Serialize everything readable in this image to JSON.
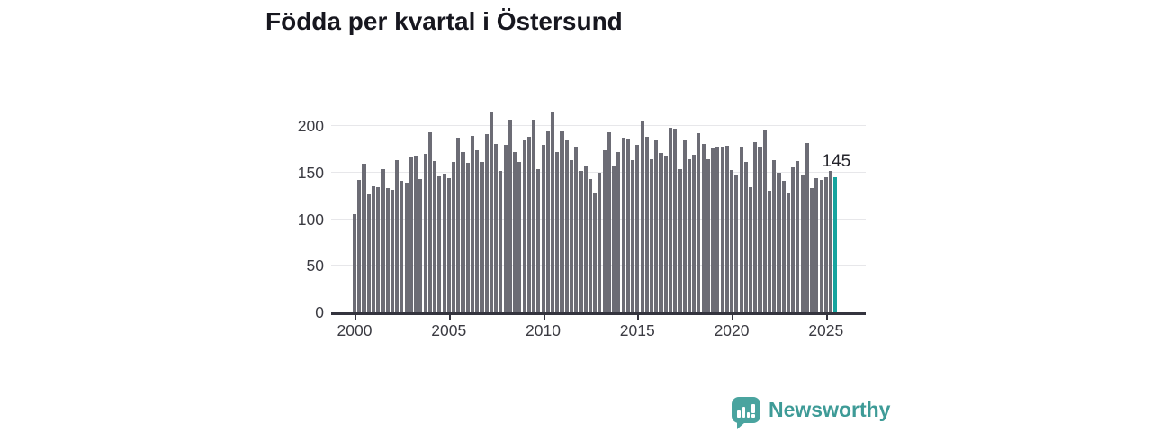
{
  "title": "Födda per kvartal i Östersund",
  "annotation": {
    "last_value_label": "145"
  },
  "branding": {
    "name": "Newsworthy",
    "icon": "newsworthy-speech-bubble-bars-icon"
  },
  "colors": {
    "bar": "#6c6c75",
    "highlight": "#16a49e",
    "grid": "#e7e7ea",
    "axis": "#34343e",
    "title": "#17171f",
    "tick_text": "#3b3b42",
    "brand_teal": "#3e9b97"
  },
  "chart_data": {
    "type": "bar",
    "title": "Födda per kvartal i Östersund",
    "xlabel": "",
    "ylabel": "",
    "ylim": [
      0,
      217
    ],
    "grid": true,
    "legend": false,
    "y_ticks": [
      0,
      50,
      100,
      150,
      200
    ],
    "x_ticks": [
      "2000",
      "2005",
      "2010",
      "2015",
      "2020",
      "2025"
    ],
    "highlight_index": 102,
    "highlight_label": "145",
    "categories": [
      "2000 Q1",
      "2000 Q2",
      "2000 Q3",
      "2000 Q4",
      "2001 Q1",
      "2001 Q2",
      "2001 Q3",
      "2001 Q4",
      "2002 Q1",
      "2002 Q2",
      "2002 Q3",
      "2002 Q4",
      "2003 Q1",
      "2003 Q2",
      "2003 Q3",
      "2003 Q4",
      "2004 Q1",
      "2004 Q2",
      "2004 Q3",
      "2004 Q4",
      "2005 Q1",
      "2005 Q2",
      "2005 Q3",
      "2005 Q4",
      "2006 Q1",
      "2006 Q2",
      "2006 Q3",
      "2006 Q4",
      "2007 Q1",
      "2007 Q2",
      "2007 Q3",
      "2007 Q4",
      "2008 Q1",
      "2008 Q2",
      "2008 Q3",
      "2008 Q4",
      "2009 Q1",
      "2009 Q2",
      "2009 Q3",
      "2009 Q4",
      "2010 Q1",
      "2010 Q2",
      "2010 Q3",
      "2010 Q4",
      "2011 Q1",
      "2011 Q2",
      "2011 Q3",
      "2011 Q4",
      "2012 Q1",
      "2012 Q2",
      "2012 Q3",
      "2012 Q4",
      "2013 Q1",
      "2013 Q2",
      "2013 Q3",
      "2013 Q4",
      "2014 Q1",
      "2014 Q2",
      "2014 Q3",
      "2014 Q4",
      "2015 Q1",
      "2015 Q2",
      "2015 Q3",
      "2015 Q4",
      "2016 Q1",
      "2016 Q2",
      "2016 Q3",
      "2016 Q4",
      "2017 Q1",
      "2017 Q2",
      "2017 Q3",
      "2017 Q4",
      "2018 Q1",
      "2018 Q2",
      "2018 Q3",
      "2018 Q4",
      "2019 Q1",
      "2019 Q2",
      "2019 Q3",
      "2019 Q4",
      "2020 Q1",
      "2020 Q2",
      "2020 Q3",
      "2020 Q4",
      "2021 Q1",
      "2021 Q2",
      "2021 Q3",
      "2021 Q4",
      "2022 Q1",
      "2022 Q2",
      "2022 Q3",
      "2022 Q4",
      "2023 Q1",
      "2023 Q2",
      "2023 Q3",
      "2023 Q4",
      "2024 Q1",
      "2024 Q2",
      "2024 Q3",
      "2024 Q4",
      "2025 Q1",
      "2025 Q2",
      "2025 Q3"
    ],
    "values": [
      105,
      142,
      159,
      127,
      135,
      134,
      154,
      133,
      131,
      163,
      141,
      139,
      166,
      168,
      143,
      170,
      193,
      162,
      146,
      149,
      144,
      161,
      187,
      172,
      160,
      189,
      174,
      161,
      191,
      215,
      181,
      152,
      180,
      207,
      172,
      161,
      185,
      188,
      207,
      154,
      180,
      194,
      215,
      172,
      194,
      185,
      163,
      178,
      152,
      157,
      143,
      128,
      150,
      174,
      193,
      157,
      172,
      187,
      186,
      163,
      180,
      206,
      188,
      164,
      185,
      171,
      168,
      198,
      197,
      154,
      185,
      164,
      169,
      192,
      181,
      164,
      177,
      178,
      178,
      179,
      153,
      148,
      178,
      161,
      134,
      183,
      178,
      196,
      130,
      163,
      150,
      141,
      128,
      156,
      162,
      147,
      182,
      133,
      144,
      142,
      145,
      152,
      145
    ]
  }
}
